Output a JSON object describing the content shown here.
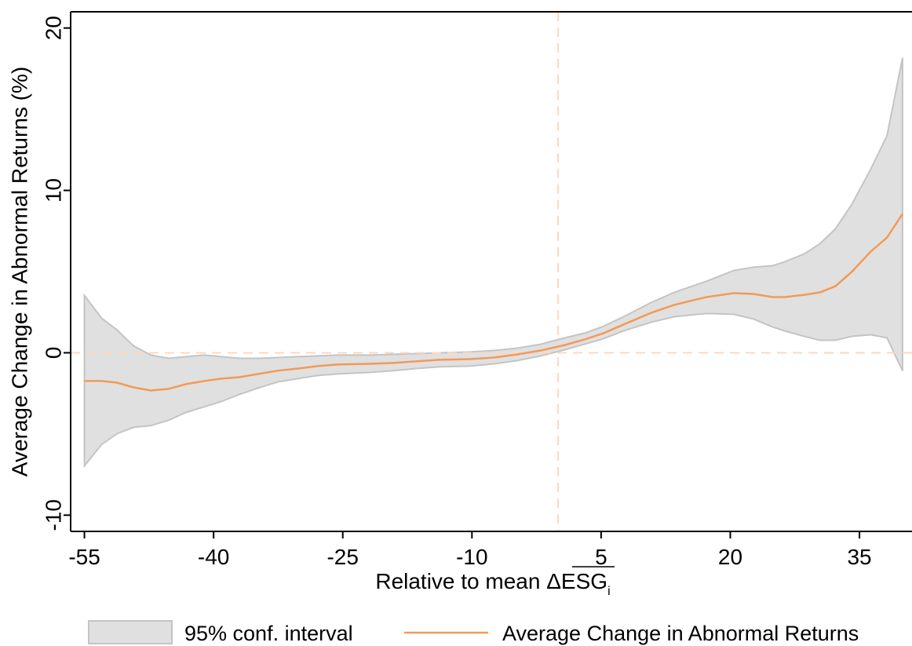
{
  "chart_data": {
    "type": "line",
    "ylabel": "Average Change in Abnormal Returns (%)",
    "xlabel": "Relative to mean ΔESG",
    "xlabel_subscript": "i",
    "xlim": [
      -56.6,
      41.1
    ],
    "ylim": [
      -11,
      21
    ],
    "xticks": [
      -55,
      -40,
      -25,
      -10,
      5,
      20,
      35
    ],
    "yticks": [
      -10,
      0,
      10,
      20
    ],
    "reference_lines": {
      "x": 0,
      "y": 0,
      "color": "#fbd9c0"
    },
    "x": [
      -55,
      -53,
      -51.2,
      -49.3,
      -47.3,
      -45.2,
      -43.2,
      -41.1,
      -39.1,
      -37,
      -34.8,
      -32.5,
      -30.2,
      -27.9,
      -25.6,
      -22,
      -19.3,
      -16.5,
      -13.8,
      -10.2,
      -7.4,
      -4.7,
      -2,
      0.8,
      3.1,
      5.3,
      7.6,
      10.8,
      13.5,
      17.2,
      20.4,
      22.7,
      24.9,
      26.3,
      28.6,
      30.4,
      32.2,
      34.1,
      36.3,
      38.2,
      40
    ],
    "series": [
      {
        "name": "95% conf. interval",
        "kind": "band",
        "color": "#e0e0e0",
        "edge_color": "#c4c4c4",
        "upper": [
          3.53,
          2.13,
          1.4,
          0.43,
          -0.14,
          -0.34,
          -0.24,
          -0.14,
          -0.24,
          -0.34,
          -0.34,
          -0.29,
          -0.24,
          -0.19,
          -0.14,
          -0.14,
          -0.1,
          -0.05,
          0,
          0.05,
          0.14,
          0.29,
          0.53,
          0.92,
          1.21,
          1.64,
          2.22,
          3.09,
          3.72,
          4.4,
          5.07,
          5.27,
          5.36,
          5.6,
          6.09,
          6.71,
          7.63,
          9.13,
          11.3,
          13.38,
          18.16
        ],
        "lower": [
          -6.96,
          -5.65,
          -4.98,
          -4.59,
          -4.49,
          -4.15,
          -3.67,
          -3.33,
          -3.0,
          -2.56,
          -2.17,
          -1.79,
          -1.59,
          -1.4,
          -1.3,
          -1.21,
          -1.11,
          -0.97,
          -0.87,
          -0.82,
          -0.68,
          -0.48,
          -0.19,
          0.19,
          0.53,
          0.87,
          1.35,
          1.88,
          2.22,
          2.42,
          2.37,
          2.08,
          1.59,
          1.35,
          1.01,
          0.77,
          0.77,
          1.01,
          1.11,
          0.92,
          -1.11
        ]
      },
      {
        "name": "Average Change in Abnormal Returns",
        "kind": "line",
        "color": "#f29a58",
        "values": [
          -1.74,
          -1.74,
          -1.84,
          -2.13,
          -2.32,
          -2.22,
          -1.93,
          -1.74,
          -1.59,
          -1.5,
          -1.3,
          -1.1,
          -0.97,
          -0.82,
          -0.72,
          -0.68,
          -0.63,
          -0.53,
          -0.43,
          -0.39,
          -0.29,
          -0.1,
          0.14,
          0.48,
          0.82,
          1.21,
          1.74,
          2.46,
          2.95,
          3.43,
          3.67,
          3.62,
          3.43,
          3.43,
          3.57,
          3.72,
          4.1,
          4.98,
          6.23,
          7.1,
          8.55
        ]
      }
    ]
  }
}
